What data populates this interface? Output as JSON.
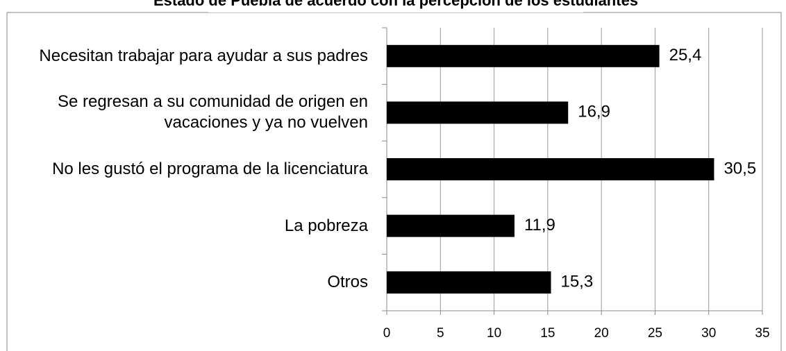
{
  "chart_data": {
    "type": "bar",
    "orientation": "horizontal",
    "title": "Estado de Puebla de acuerdo con la percepción de los estudiantes",
    "categories": [
      "Necesitan trabajar para ayudar a sus padres",
      "Se regresan a su comunidad de origen en vacaciones y ya no vuelven",
      "No les gustó el programa de la licenciatura",
      "La pobreza",
      "Otros"
    ],
    "values": [
      25.4,
      16.9,
      30.5,
      11.9,
      15.3
    ],
    "value_labels": [
      "25,4",
      "16,9",
      "30,5",
      "11,9",
      "15,3"
    ],
    "color": "#000000",
    "xlim": [
      0,
      35
    ],
    "xticks": [
      0,
      5,
      10,
      15,
      20,
      25,
      30,
      35
    ],
    "grid": true
  }
}
